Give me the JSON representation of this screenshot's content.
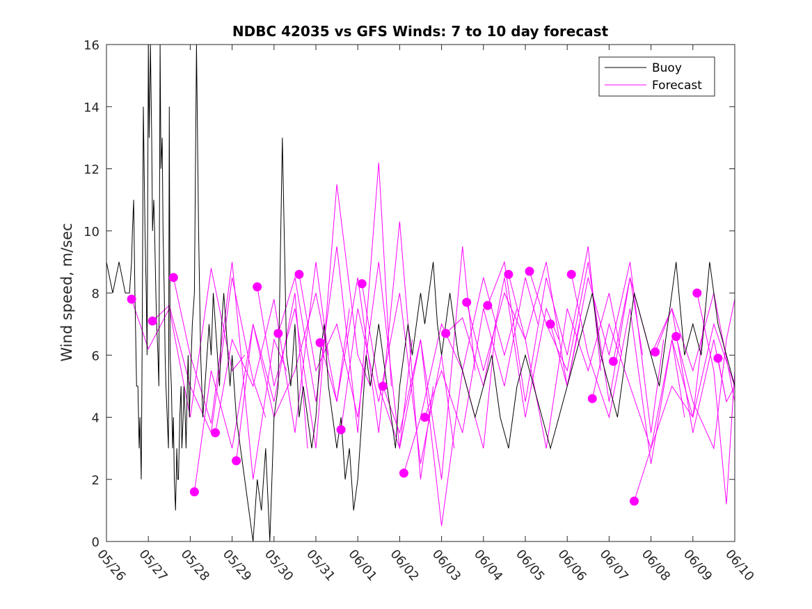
{
  "chart_data": {
    "type": "line",
    "title": "NDBC 42035 vs GFS Winds: 7 to 10 day forecast",
    "xlabel": "",
    "ylabel": "Wind speed, m/sec",
    "x_tick_labels": [
      "05/26",
      "05/27",
      "05/28",
      "05/29",
      "05/30",
      "05/31",
      "06/01",
      "06/02",
      "06/03",
      "06/04",
      "06/05",
      "06/06",
      "06/07",
      "06/08",
      "06/09",
      "06/10"
    ],
    "xlim_days": [
      0,
      15
    ],
    "ylim": [
      0,
      16
    ],
    "y_ticks": [
      0,
      2,
      4,
      6,
      8,
      10,
      12,
      14,
      16
    ],
    "grid": false,
    "legend_position": "top-right",
    "colors": {
      "buoy": "#000000",
      "forecast": "#ff00ff"
    },
    "series": [
      {
        "name": "Buoy",
        "style": "line",
        "x": [
          0.0,
          0.15,
          0.3,
          0.45,
          0.55,
          0.6,
          0.62,
          0.65,
          0.68,
          0.72,
          0.75,
          0.78,
          0.8,
          0.83,
          0.85,
          0.88,
          0.9,
          0.92,
          0.95,
          0.97,
          1.0,
          1.02,
          1.05,
          1.08,
          1.1,
          1.13,
          1.15,
          1.18,
          1.2,
          1.23,
          1.25,
          1.28,
          1.3,
          1.33,
          1.35,
          1.38,
          1.4,
          1.42,
          1.45,
          1.48,
          1.5,
          1.52,
          1.55,
          1.58,
          1.6,
          1.62,
          1.65,
          1.68,
          1.7,
          1.72,
          1.75,
          1.78,
          1.8,
          1.83,
          1.85,
          1.88,
          1.9,
          1.93,
          1.95,
          1.98,
          2.0,
          2.05,
          2.1,
          2.15,
          2.2,
          2.25,
          2.3,
          2.35,
          2.4,
          2.45,
          2.5,
          2.55,
          2.6,
          2.65,
          2.7,
          2.75,
          2.8,
          2.85,
          2.9,
          2.95,
          3.0,
          3.1,
          3.2,
          3.3,
          3.4,
          3.5,
          3.6,
          3.7,
          3.8,
          3.9,
          4.0,
          4.1,
          4.2,
          4.3,
          4.4,
          4.5,
          4.6,
          4.7,
          4.8,
          4.9,
          5.0,
          5.1,
          5.2,
          5.3,
          5.4,
          5.5,
          5.6,
          5.7,
          5.8,
          5.9,
          6.0,
          6.1,
          6.2,
          6.3,
          6.4,
          6.5,
          6.6,
          6.7,
          6.8,
          6.9,
          7.0,
          7.1,
          7.2,
          7.3,
          7.4,
          7.5,
          7.6,
          7.7,
          7.8,
          7.9,
          8.0,
          8.2,
          8.4,
          8.6,
          8.8,
          9.0,
          9.2,
          9.4,
          9.6,
          9.8,
          10.0,
          10.2,
          10.4,
          10.6,
          10.8,
          11.0,
          11.2,
          11.4,
          11.6,
          11.8,
          12.0,
          12.2,
          12.4,
          12.6,
          12.8,
          13.0,
          13.2,
          13.4,
          13.6,
          13.8,
          14.0,
          14.2,
          14.4,
          14.6,
          14.8,
          15.0
        ],
        "values": [
          9,
          8,
          9,
          8,
          8,
          9,
          10,
          11,
          8,
          5,
          5,
          3,
          4,
          2,
          6,
          14,
          12,
          10,
          8,
          6,
          16,
          13,
          16,
          13,
          10,
          11,
          10,
          8,
          7,
          6,
          5,
          16,
          12,
          13,
          10,
          8,
          6,
          5,
          4,
          3,
          14,
          6,
          5,
          3,
          4,
          2,
          1,
          3,
          2,
          2,
          4,
          5,
          3,
          4,
          5,
          4,
          3,
          5,
          6,
          4,
          5,
          7,
          8,
          16,
          10,
          6,
          4,
          5,
          6,
          7,
          6,
          8,
          7,
          6,
          5,
          7,
          8,
          7,
          6,
          5,
          6,
          4,
          3,
          2,
          1,
          0,
          2,
          1,
          3,
          0,
          4,
          5,
          13,
          6,
          5,
          7,
          4,
          5,
          4,
          3,
          4,
          6,
          7,
          5,
          4,
          3,
          4,
          2,
          3,
          1,
          2,
          4,
          6,
          5,
          6,
          7,
          6,
          5,
          4,
          3,
          5,
          6,
          7,
          6,
          7,
          8,
          7,
          8,
          9,
          7,
          6,
          8,
          6,
          5,
          4,
          5,
          6,
          4,
          3,
          5,
          6,
          5,
          4,
          3,
          4,
          5,
          6,
          7,
          8,
          6,
          5,
          4,
          6,
          8,
          7,
          6,
          5,
          7,
          9,
          6,
          7,
          6,
          9,
          7,
          6,
          5
        ]
      },
      {
        "name": "Forecast",
        "style": "lines",
        "lines": [
          {
            "x": [
              0.6,
              1.0,
              1.5,
              2.0,
              2.5,
              3.0,
              3.3
            ],
            "values": [
              7.8,
              6.2,
              7.5,
              4.0,
              8.8,
              5.5,
              6.0
            ]
          },
          {
            "x": [
              1.1,
              1.5,
              2.0,
              2.5,
              3.0,
              3.5,
              3.8
            ],
            "values": [
              7.1,
              7.6,
              5.0,
              3.5,
              8.5,
              5.2,
              4.0
            ]
          },
          {
            "x": [
              1.6,
              2.0,
              2.5,
              3.0,
              3.5,
              4.0,
              4.3
            ],
            "values": [
              8.5,
              6.0,
              3.8,
              9.0,
              2.0,
              6.5,
              5.5
            ]
          },
          {
            "x": [
              2.1,
              2.5,
              3.0,
              3.5,
              4.0,
              4.5,
              4.8
            ],
            "values": [
              1.6,
              5.5,
              3.0,
              7.0,
              4.5,
              8.0,
              3.0
            ]
          },
          {
            "x": [
              2.6,
              3.0,
              3.5,
              4.0,
              4.5,
              5.0,
              5.3
            ],
            "values": [
              3.5,
              6.5,
              5.0,
              7.8,
              3.5,
              9.0,
              6.0
            ]
          },
          {
            "x": [
              3.1,
              3.5,
              4.0,
              4.5,
              5.0,
              5.5,
              5.8
            ],
            "values": [
              2.6,
              7.0,
              4.0,
              5.5,
              8.0,
              4.5,
              7.5
            ]
          },
          {
            "x": [
              3.6,
              4.0,
              4.5,
              5.0,
              5.5,
              6.0,
              6.3
            ],
            "values": [
              8.2,
              5.0,
              7.5,
              3.0,
              11.5,
              6.0,
              5.0
            ]
          },
          {
            "x": [
              4.1,
              4.5,
              5.0,
              5.5,
              6.0,
              6.5,
              6.8
            ],
            "values": [
              6.7,
              8.5,
              4.5,
              9.5,
              3.5,
              12.2,
              5.0
            ]
          },
          {
            "x": [
              4.6,
              5.0,
              5.5,
              6.0,
              6.5,
              7.0,
              7.3
            ],
            "values": [
              8.6,
              5.5,
              7.0,
              4.0,
              9.0,
              3.0,
              6.5
            ]
          },
          {
            "x": [
              5.1,
              5.5,
              6.0,
              6.5,
              7.0,
              7.5,
              7.8
            ],
            "values": [
              6.4,
              4.5,
              8.5,
              3.5,
              10.3,
              2.0,
              5.0
            ]
          },
          {
            "x": [
              5.6,
              6.0,
              6.5,
              7.0,
              7.5,
              8.0,
              8.3
            ],
            "values": [
              3.6,
              7.5,
              4.5,
              8.0,
              2.5,
              6.0,
              3.0
            ]
          },
          {
            "x": [
              6.1,
              6.5,
              7.0,
              7.5,
              8.0,
              8.5,
              8.8
            ],
            "values": [
              8.3,
              5.0,
              3.0,
              6.5,
              2.0,
              9.5,
              5.5
            ]
          },
          {
            "x": [
              6.6,
              7.0,
              7.5,
              8.0,
              8.5,
              9.0,
              9.3
            ],
            "values": [
              5.0,
              3.5,
              6.5,
              0.5,
              5.5,
              3.0,
              7.0
            ]
          },
          {
            "x": [
              7.1,
              7.5,
              8.0,
              8.5,
              9.0,
              9.5,
              9.8
            ],
            "values": [
              2.2,
              4.0,
              7.0,
              5.5,
              8.5,
              6.0,
              7.5
            ]
          },
          {
            "x": [
              7.6,
              8.0,
              8.5,
              9.0,
              9.5,
              10.0,
              10.3
            ],
            "values": [
              4.0,
              5.5,
              3.5,
              7.5,
              5.0,
              8.5,
              7.0
            ]
          },
          {
            "x": [
              8.1,
              8.5,
              9.0,
              9.5,
              10.0,
              10.5,
              10.8
            ],
            "values": [
              6.7,
              7.2,
              5.0,
              8.5,
              4.0,
              7.5,
              6.5
            ]
          },
          {
            "x": [
              8.6,
              9.0,
              9.5,
              10.0,
              10.5,
              11.0,
              11.3
            ],
            "values": [
              7.7,
              5.5,
              8.0,
              6.5,
              9.0,
              5.0,
              7.0
            ]
          },
          {
            "x": [
              9.1,
              9.5,
              10.0,
              10.5,
              11.0,
              11.5,
              11.8
            ],
            "values": [
              7.6,
              9.0,
              4.5,
              8.5,
              6.0,
              9.5,
              5.5
            ]
          },
          {
            "x": [
              9.6,
              10.0,
              10.5,
              11.0,
              11.5,
              12.0,
              12.3
            ],
            "values": [
              8.6,
              6.5,
              3.0,
              7.5,
              5.5,
              8.0,
              6.0
            ]
          },
          {
            "x": [
              10.1,
              10.5,
              11.0,
              11.5,
              12.0,
              12.5,
              12.8
            ],
            "values": [
              8.7,
              7.0,
              5.5,
              9.0,
              4.5,
              8.5,
              6.0
            ]
          },
          {
            "x": [
              10.6,
              11.0,
              11.5,
              12.0,
              12.5,
              13.0,
              13.3
            ],
            "values": [
              7.0,
              5.0,
              8.5,
              6.0,
              9.0,
              3.5,
              6.5
            ]
          },
          {
            "x": [
              11.1,
              11.5,
              12.0,
              12.5,
              13.0,
              13.5,
              13.8
            ],
            "values": [
              8.6,
              6.0,
              4.0,
              7.5,
              2.5,
              6.5,
              4.0
            ]
          },
          {
            "x": [
              11.6,
              12.0,
              12.5,
              13.0,
              13.5,
              14.0,
              14.3
            ],
            "values": [
              4.6,
              7.0,
              5.0,
              3.0,
              6.5,
              4.0,
              7.5
            ]
          },
          {
            "x": [
              12.1,
              12.5,
              13.0,
              13.5,
              14.0,
              14.5,
              14.8
            ],
            "values": [
              5.8,
              8.5,
              6.0,
              7.5,
              3.5,
              6.5,
              4.5
            ]
          },
          {
            "x": [
              12.6,
              13.0,
              13.5,
              14.0,
              14.5,
              15.0
            ],
            "values": [
              1.3,
              3.0,
              5.0,
              4.0,
              7.0,
              5.0
            ]
          },
          {
            "x": [
              13.1,
              13.5,
              14.0,
              14.5,
              15.0
            ],
            "values": [
              6.1,
              7.5,
              5.5,
              8.0,
              4.5
            ]
          },
          {
            "x": [
              13.6,
              14.0,
              14.5,
              14.8,
              15.0
            ],
            "values": [
              6.6,
              4.5,
              3.0,
              6.5,
              7.8
            ]
          },
          {
            "x": [
              14.1,
              14.5,
              14.8,
              15.0
            ],
            "values": [
              8.0,
              5.5,
              1.2,
              5.5
            ]
          },
          {
            "x": [
              14.6,
              14.8,
              15.0
            ],
            "values": [
              5.9,
              4.5,
              5.0
            ]
          }
        ],
        "markers": {
          "x": [
            0.6,
            1.1,
            1.6,
            2.1,
            2.6,
            3.1,
            3.6,
            4.1,
            4.6,
            5.1,
            5.6,
            6.1,
            6.6,
            7.1,
            7.6,
            8.1,
            8.6,
            9.1,
            9.6,
            10.1,
            10.6,
            11.1,
            11.6,
            12.1,
            12.6,
            13.1,
            13.6,
            14.1,
            14.6
          ],
          "values": [
            7.8,
            7.1,
            8.5,
            1.6,
            3.5,
            2.6,
            8.2,
            6.7,
            8.6,
            6.4,
            3.6,
            8.3,
            5.0,
            2.2,
            4.0,
            6.7,
            7.7,
            7.6,
            8.6,
            8.7,
            7.0,
            8.6,
            4.6,
            5.8,
            1.3,
            6.1,
            6.6,
            8.0,
            5.9
          ]
        }
      }
    ]
  }
}
